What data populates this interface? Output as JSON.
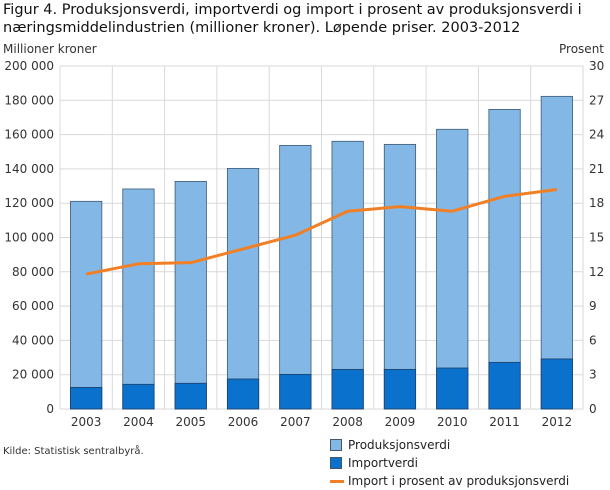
{
  "title": "Figur 4. Produksjonsverdi, importverdi og import i prosent av produksjonsverdi i næringsmiddelindustrien (millioner kroner). Løpende priser. 2003-2012",
  "source": "Kilde: Statistisk sentralbyrå.",
  "chart_data": {
    "type": "bar",
    "title": "Figur 4. Produksjonsverdi, importverdi og import i prosent av produksjonsverdi i næringsmiddelindustrien (millioner kroner). Løpende priser. 2003-2012",
    "ylabel": "Millioner kroner",
    "y2label": "Prosent",
    "ylim": [
      0,
      200000
    ],
    "y2lim": [
      0,
      30
    ],
    "yticks": [
      "0",
      "20 000",
      "40 000",
      "60 000",
      "80 000",
      "100 000",
      "120 000",
      "140 000",
      "160 000",
      "180 000",
      "200 000"
    ],
    "y2ticks": [
      "0",
      "3",
      "6",
      "9",
      "12",
      "15",
      "18",
      "21",
      "24",
      "27",
      "30"
    ],
    "categories": [
      "2003",
      "2004",
      "2005",
      "2006",
      "2007",
      "2008",
      "2009",
      "2010",
      "2011",
      "2012"
    ],
    "series": [
      {
        "name": "Produksjonsverdi",
        "type": "bar",
        "color": "#83b8e6",
        "values": [
          121100,
          128300,
          132700,
          140300,
          153700,
          156100,
          154300,
          163100,
          174700,
          182300
        ]
      },
      {
        "name": "Importverdi",
        "type": "bar",
        "color": "#0a71cc",
        "values": [
          12600,
          14400,
          15000,
          17500,
          20200,
          23100,
          23100,
          23900,
          27200,
          29200
        ]
      },
      {
        "name": "Import i prosent av produksjonsverdi",
        "type": "line",
        "axis": "right",
        "color": "#f07f25",
        "values": [
          11.8,
          12.7,
          12.8,
          14.0,
          15.2,
          17.3,
          17.7,
          17.3,
          18.6,
          19.2
        ]
      }
    ],
    "grid": true,
    "legend": "bottom-right"
  }
}
